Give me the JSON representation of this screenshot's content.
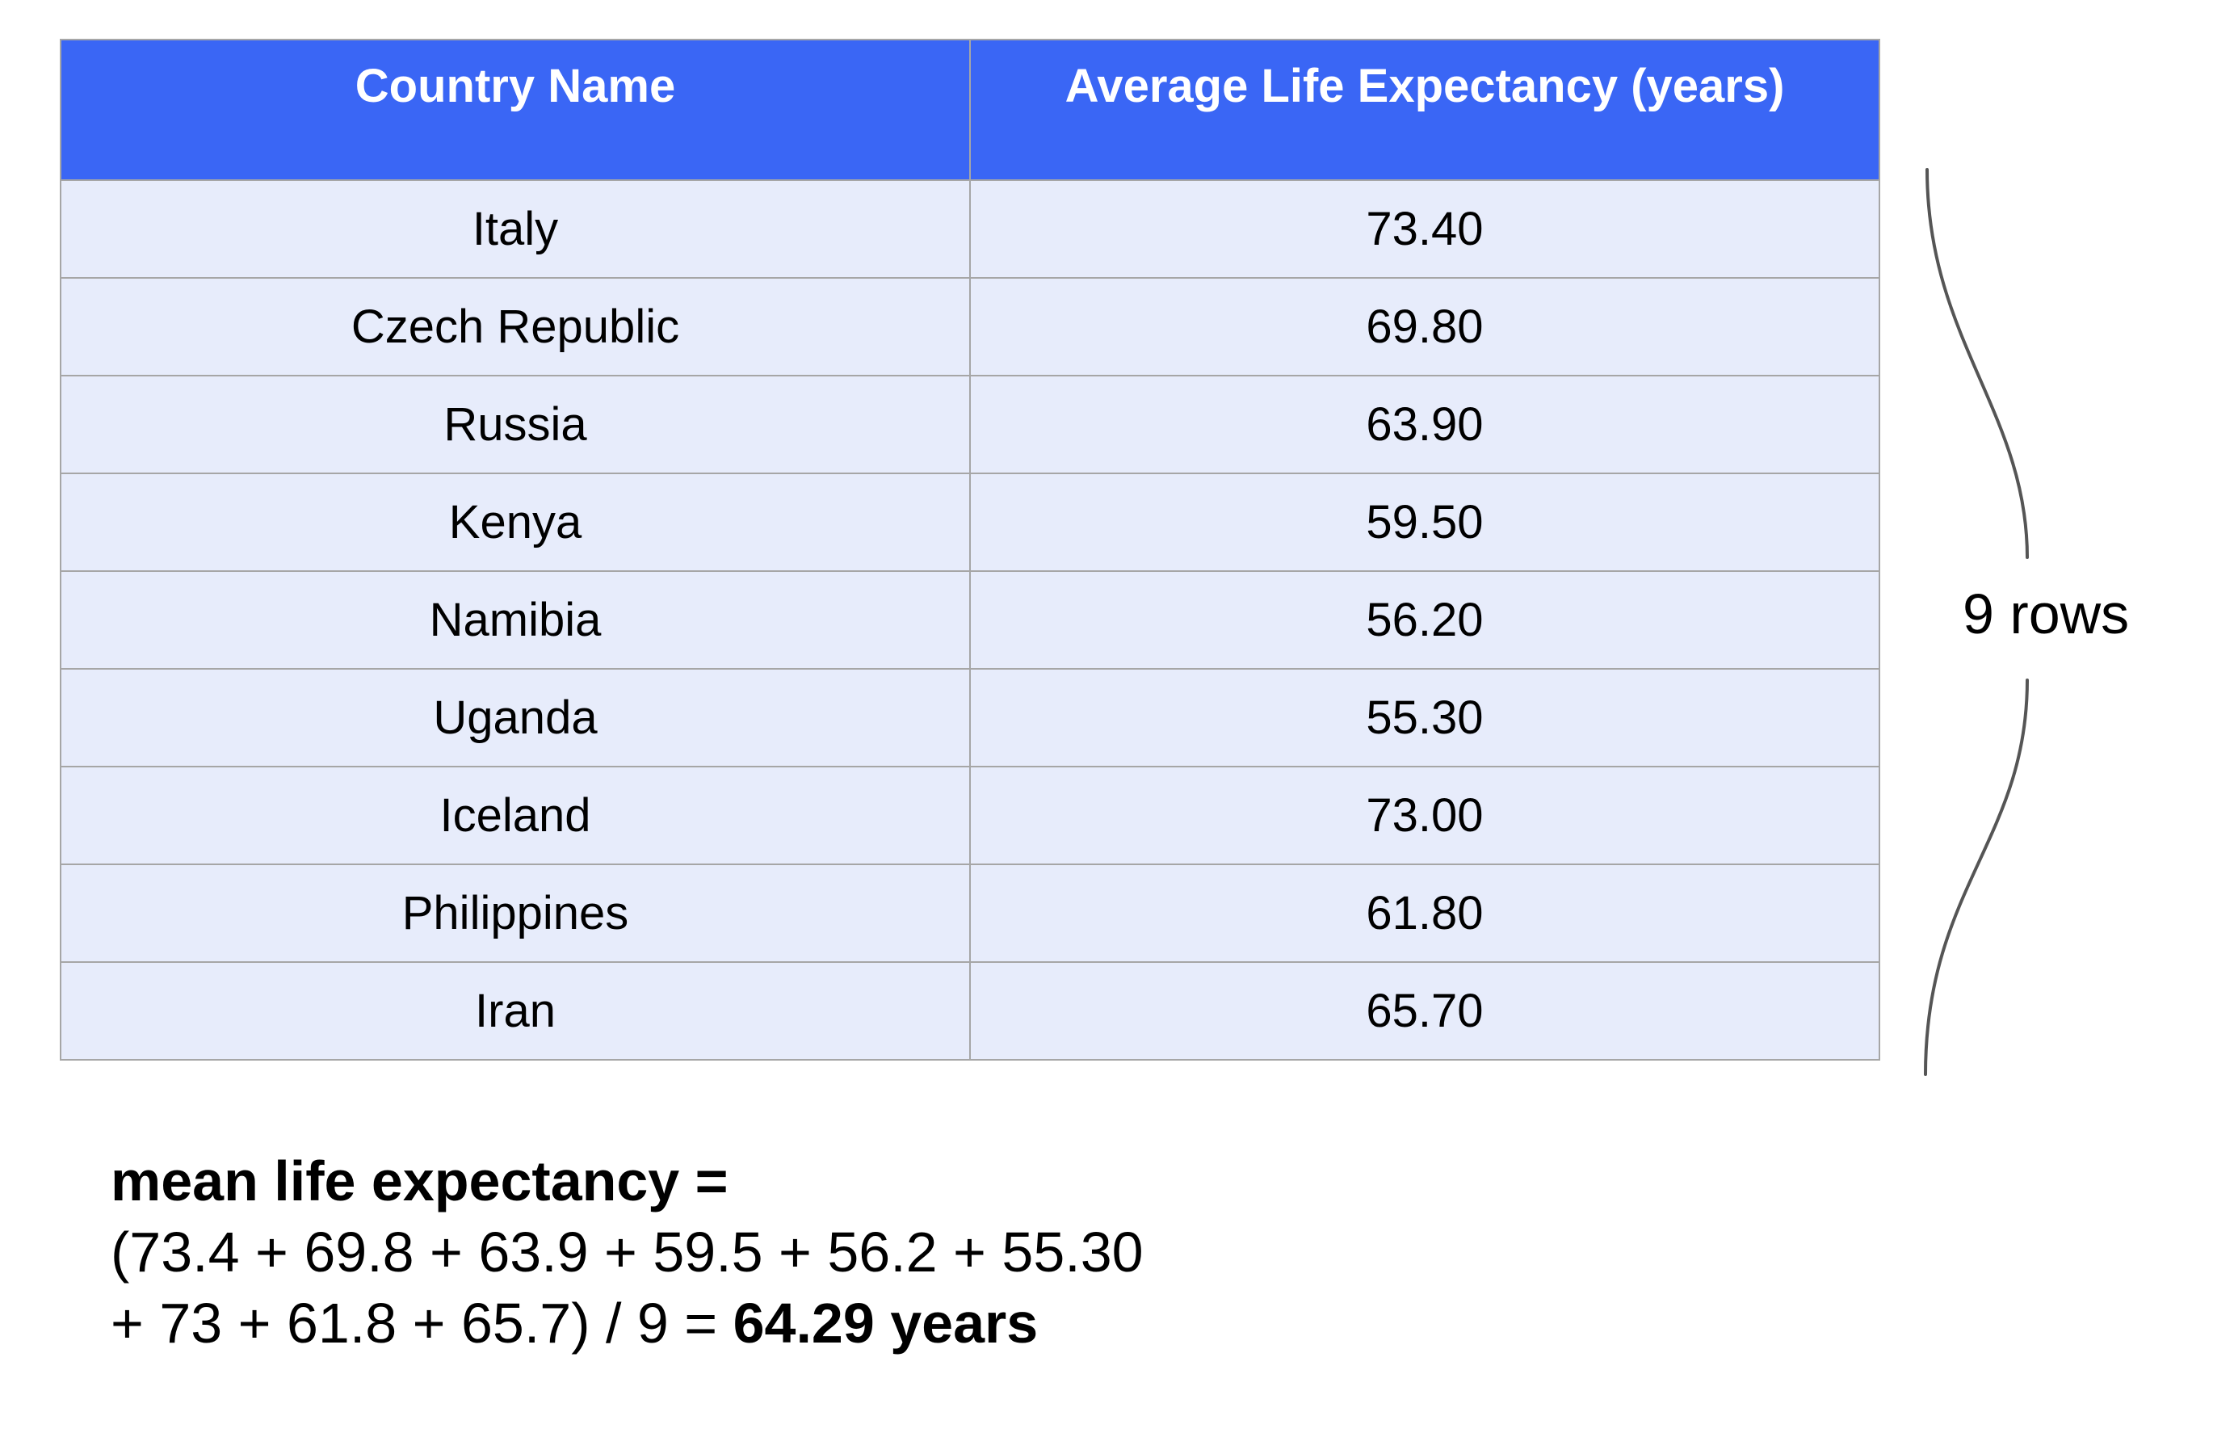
{
  "colors": {
    "header_bg": "#3a66f5",
    "row_bg": "#e7ecfb",
    "border": "#a6a6a6",
    "header_text": "#ffffff",
    "brace": "#555555"
  },
  "table": {
    "headers": [
      "Country Name",
      "Average Life Expectancy (years)"
    ],
    "rows": [
      [
        "Italy",
        "73.40"
      ],
      [
        "Czech Republic",
        "69.80"
      ],
      [
        "Russia",
        "63.90"
      ],
      [
        "Kenya",
        "59.50"
      ],
      [
        "Namibia",
        "56.20"
      ],
      [
        "Uganda",
        "55.30"
      ],
      [
        "Iceland",
        "73.00"
      ],
      [
        "Philippines",
        "61.80"
      ],
      [
        "Iran",
        "65.70"
      ]
    ]
  },
  "brace": {
    "icon": "curly-brace-icon",
    "label": "9 rows"
  },
  "formula": {
    "heading": "mean life expectancy =",
    "line2": "(73.4 + 69.8 + 63.9 + 59.5 + 56.2 + 55.30",
    "line3_prefix": "+ 73 + 61.8 + 65.7) / 9 = ",
    "result": "64.29 years"
  }
}
